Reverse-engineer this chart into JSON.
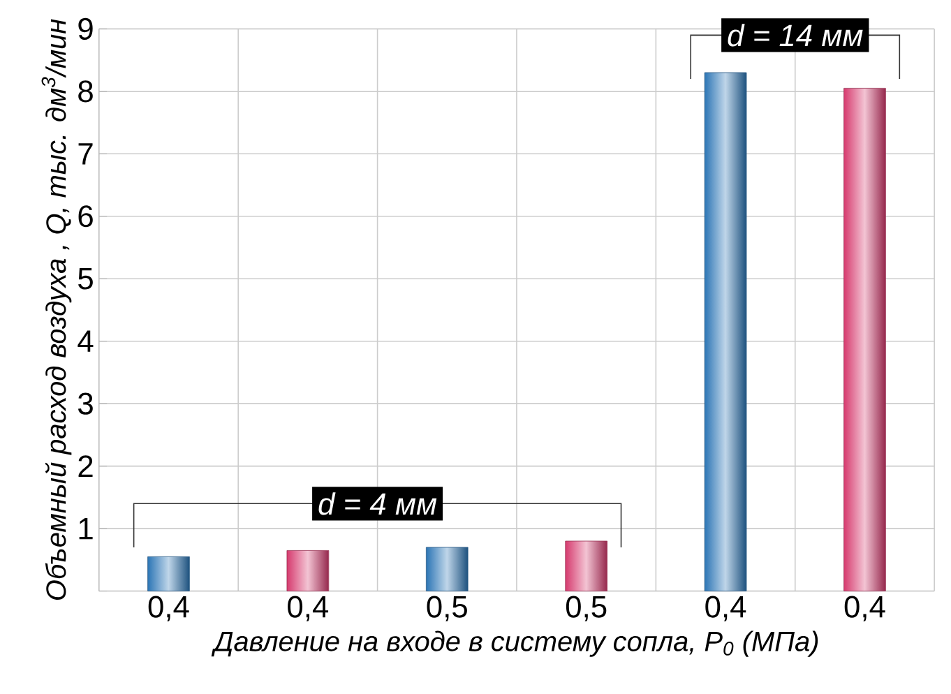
{
  "chart_data": {
    "type": "bar",
    "xlabel": "Давление на входе в систему сопла, P$_{0}$ (МПа)",
    "ylabel": "Объемный расход воздуха , Q, тыс. дм$^{3}$/мин",
    "categories": [
      "0,4",
      "0,4",
      "0,5",
      "0,5",
      "0,4",
      "0,4"
    ],
    "values": [
      0.55,
      0.65,
      0.7,
      0.8,
      8.3,
      8.05
    ],
    "colors": [
      "#2b75b5",
      "#d63a6e",
      "#2b75b5",
      "#d63a6e",
      "#2b75b5",
      "#d63a6e"
    ],
    "ylim": [
      0,
      9
    ],
    "yticks": [
      {
        "value": 0,
        "label": null
      },
      1,
      2,
      3,
      4,
      5,
      6,
      7,
      8,
      9
    ],
    "grid": true,
    "annotations": [
      "d = 4 мм",
      "d = 14 мм"
    ]
  }
}
